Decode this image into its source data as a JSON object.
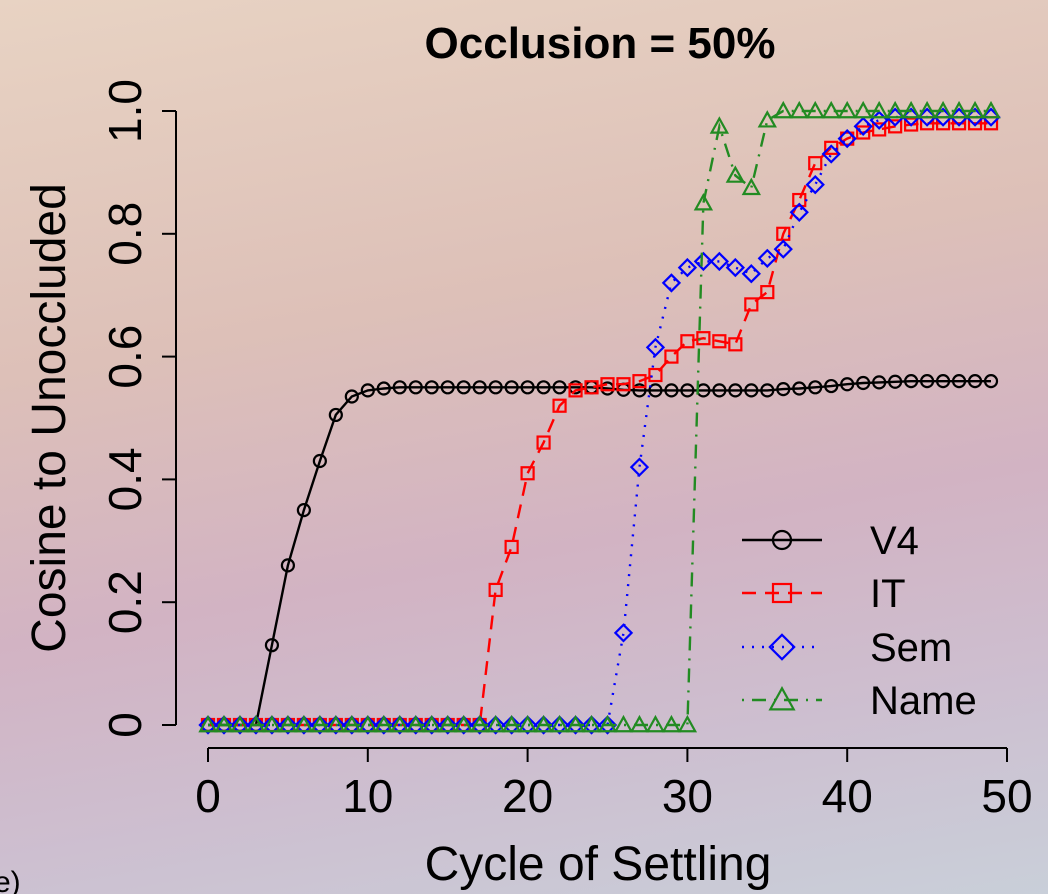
{
  "panel_label": "e)",
  "chart_data": {
    "type": "line",
    "title": "Occlusion = 50%",
    "xlabel": "Cycle of Settling",
    "ylabel": "Cosine to Unoccluded",
    "xlim": [
      0,
      50
    ],
    "ylim": [
      0,
      1
    ],
    "xticks": [
      0,
      10,
      20,
      30,
      40,
      50
    ],
    "xtick_labels": [
      "0",
      "10",
      "20",
      "30",
      "40",
      "50"
    ],
    "yticks": [
      0,
      0.2,
      0.4,
      0.6,
      0.8,
      1.0
    ],
    "ytick_labels": [
      "0",
      "0.2",
      "0.4",
      "0.6",
      "0.8",
      "1.0"
    ],
    "grid": false,
    "legend_position": "bottom-right",
    "x": [
      0,
      1,
      2,
      3,
      4,
      5,
      6,
      7,
      8,
      9,
      10,
      11,
      12,
      13,
      14,
      15,
      16,
      17,
      18,
      19,
      20,
      21,
      22,
      23,
      24,
      25,
      26,
      27,
      28,
      29,
      30,
      31,
      32,
      33,
      34,
      35,
      36,
      37,
      38,
      39,
      40,
      41,
      42,
      43,
      44,
      45,
      46,
      47,
      48,
      49
    ],
    "series": [
      {
        "name": "V4",
        "color": "#000000",
        "line_style": "solid",
        "marker": "circle",
        "values": [
          0,
          0,
          0,
          0,
          0.13,
          0.26,
          0.35,
          0.43,
          0.505,
          0.535,
          0.545,
          0.548,
          0.55,
          0.55,
          0.55,
          0.55,
          0.55,
          0.55,
          0.55,
          0.55,
          0.55,
          0.55,
          0.55,
          0.55,
          0.55,
          0.548,
          0.546,
          0.545,
          0.545,
          0.545,
          0.545,
          0.545,
          0.545,
          0.545,
          0.545,
          0.545,
          0.547,
          0.548,
          0.55,
          0.552,
          0.555,
          0.557,
          0.558,
          0.559,
          0.56,
          0.56,
          0.56,
          0.56,
          0.56,
          0.56
        ]
      },
      {
        "name": "IT",
        "color": "#ff0000",
        "line_style": "dashed",
        "marker": "square",
        "values": [
          0,
          0,
          0,
          0,
          0,
          0,
          0,
          0,
          0,
          0,
          0,
          0,
          0,
          0,
          0,
          0,
          0,
          0,
          0.22,
          0.29,
          0.41,
          0.46,
          0.52,
          0.545,
          0.55,
          0.555,
          0.555,
          0.56,
          0.57,
          0.6,
          0.625,
          0.63,
          0.625,
          0.62,
          0.685,
          0.705,
          0.8,
          0.855,
          0.915,
          0.94,
          0.955,
          0.965,
          0.97,
          0.975,
          0.978,
          0.98,
          0.98,
          0.98,
          0.98,
          0.98
        ]
      },
      {
        "name": "Sem",
        "color": "#0000ff",
        "line_style": "dotted",
        "marker": "diamond",
        "values": [
          0,
          0,
          0,
          0,
          0,
          0,
          0,
          0,
          0,
          0,
          0,
          0,
          0,
          0,
          0,
          0,
          0,
          0,
          0,
          0,
          0,
          0,
          0,
          0,
          0,
          0,
          0.15,
          0.42,
          0.615,
          0.72,
          0.745,
          0.755,
          0.755,
          0.745,
          0.735,
          0.76,
          0.775,
          0.835,
          0.88,
          0.93,
          0.955,
          0.975,
          0.985,
          0.99,
          0.99,
          0.99,
          0.99,
          0.99,
          0.99,
          0.99
        ]
      },
      {
        "name": "Name",
        "color": "#228b22",
        "line_style": "dotdash",
        "marker": "triangle",
        "values": [
          0,
          0,
          0,
          0,
          0,
          0,
          0,
          0,
          0,
          0,
          0,
          0,
          0,
          0,
          0,
          0,
          0,
          0,
          0,
          0,
          0,
          0,
          0,
          0,
          0,
          0,
          0,
          0,
          0,
          0,
          0,
          0.85,
          0.975,
          0.895,
          0.875,
          0.985,
          1,
          1,
          1,
          1,
          1,
          1,
          1,
          1,
          1,
          1,
          1,
          1,
          1,
          1
        ]
      }
    ]
  }
}
